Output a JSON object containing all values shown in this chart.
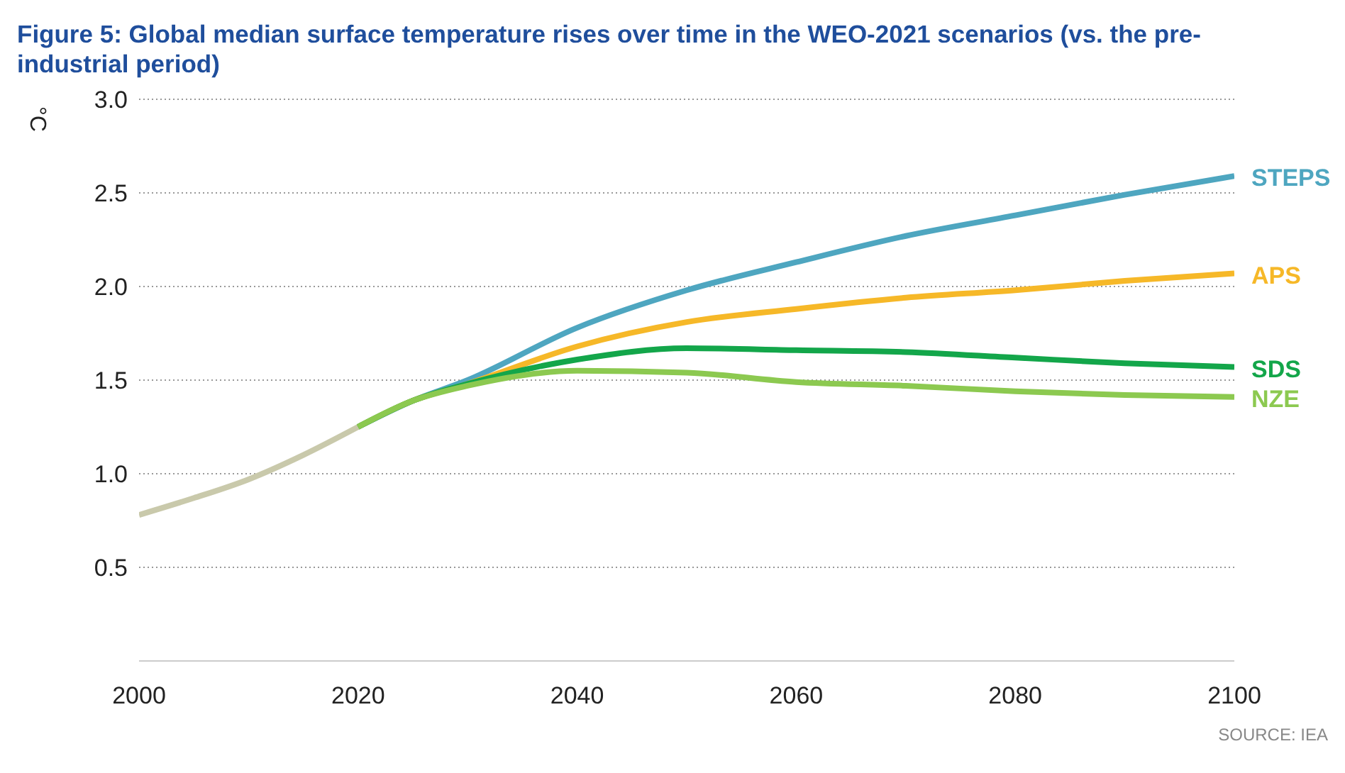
{
  "chart_data": {
    "type": "line",
    "title": "Figure 5: Global median surface temperature rises over time in the WEO-2021 scenarios (vs. the pre-industrial period)",
    "ylabel": "°C",
    "annotations": [
      "SOURCE: IEA"
    ],
    "xlim": [
      2000,
      2100
    ],
    "xticks": [
      2000,
      2020,
      2040,
      2060,
      2080,
      2100
    ],
    "ylim": [
      0,
      3
    ],
    "yticks": [
      0.5,
      {
        "value": 1,
        "label": "1.0"
      },
      1.5,
      {
        "value": 2,
        "label": "2.0"
      },
      2.5,
      {
        "value": 3,
        "label": "3.0"
      }
    ],
    "grid": "y",
    "marker": "none",
    "line_style": "solid",
    "series": [
      {
        "color": "#c9c9ab",
        "x": [
          2000,
          2005,
          2010,
          2015,
          2020
        ],
        "values": [
          0.78,
          0.87,
          0.97,
          1.1,
          1.25
        ]
      },
      {
        "name": "STEPS",
        "color": "#4ea6c0",
        "x": [
          2020,
          2025,
          2030,
          2040,
          2050,
          2060,
          2070,
          2080,
          2090,
          2100
        ],
        "values": [
          1.25,
          1.39,
          1.5,
          1.78,
          1.98,
          2.13,
          2.27,
          2.38,
          2.49,
          2.59
        ]
      },
      {
        "name": "APS",
        "color": "#f6b828",
        "x": [
          2020,
          2025,
          2030,
          2040,
          2050,
          2060,
          2070,
          2080,
          2090,
          2100
        ],
        "values": [
          1.25,
          1.39,
          1.48,
          1.68,
          1.81,
          1.88,
          1.94,
          1.98,
          2.03,
          2.07
        ]
      },
      {
        "name": "SDS",
        "color": "#13a64a",
        "x": [
          2020,
          2025,
          2030,
          2040,
          2050,
          2060,
          2070,
          2080,
          2090,
          2100
        ],
        "values": [
          1.25,
          1.39,
          1.48,
          1.61,
          1.67,
          1.66,
          1.65,
          1.62,
          1.59,
          1.57
        ]
      },
      {
        "name": "NZE",
        "color": "#8cc950",
        "x": [
          2020,
          2025,
          2030,
          2040,
          2050,
          2060,
          2070,
          2080,
          2090,
          2100
        ],
        "values": [
          1.25,
          1.39,
          1.47,
          1.55,
          1.54,
          1.49,
          1.47,
          1.44,
          1.42,
          1.41
        ]
      }
    ]
  }
}
